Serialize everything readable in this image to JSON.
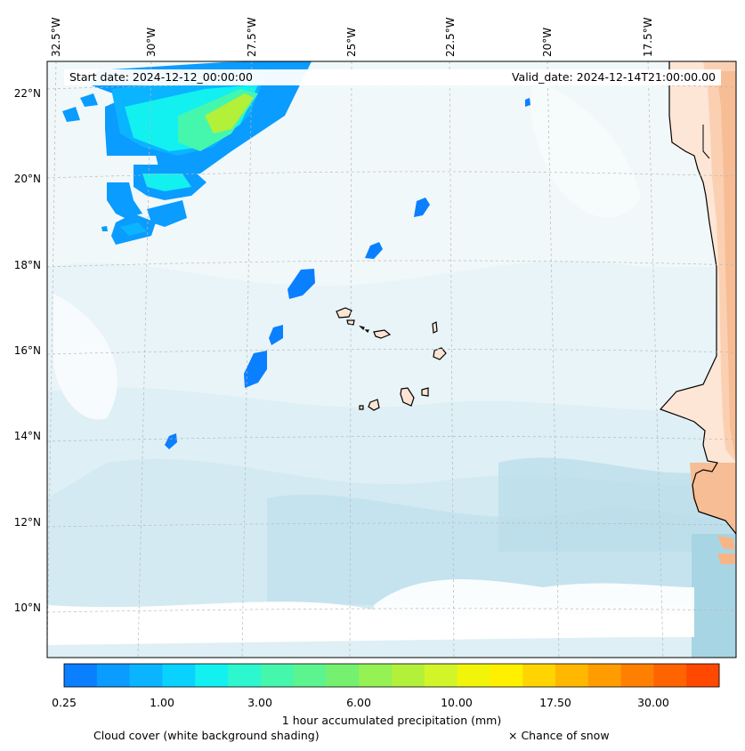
{
  "map": {
    "start_date": "Start date: 2024-12-12_00:00:00",
    "valid_date": "Valid_date: 2024-12-14T21:00:00.00",
    "longitude_labels": [
      "32.5°W",
      "30°W",
      "27.5°W",
      "25°W",
      "22.5°W",
      "20°W",
      "17.5°W"
    ],
    "latitude_labels": [
      "22°N",
      "20°N",
      "18°N",
      "16°N",
      "14°N",
      "12°N",
      "10°N"
    ]
  },
  "colorbar": {
    "title": "1 hour accumulated precipitation (mm)",
    "tick_labels": [
      "0.25",
      "1.00",
      "3.00",
      "6.00",
      "10.00",
      "17.50",
      "30.00"
    ],
    "colors": [
      "#0a7fff",
      "#0a9cff",
      "#0ab4ff",
      "#0ad2ff",
      "#12f0f0",
      "#2cf7cf",
      "#44f7ad",
      "#5cf48e",
      "#76f06f",
      "#94f254",
      "#b2f03a",
      "#d2f52a",
      "#f0f50a",
      "#fff000",
      "#ffd400",
      "#ffb700",
      "#ff9c00",
      "#ff8000",
      "#ff6400",
      "#ff4800"
    ]
  },
  "footer": {
    "cloud_cover": "Cloud cover (white background shading)",
    "snow": "× Chance of snow"
  }
}
